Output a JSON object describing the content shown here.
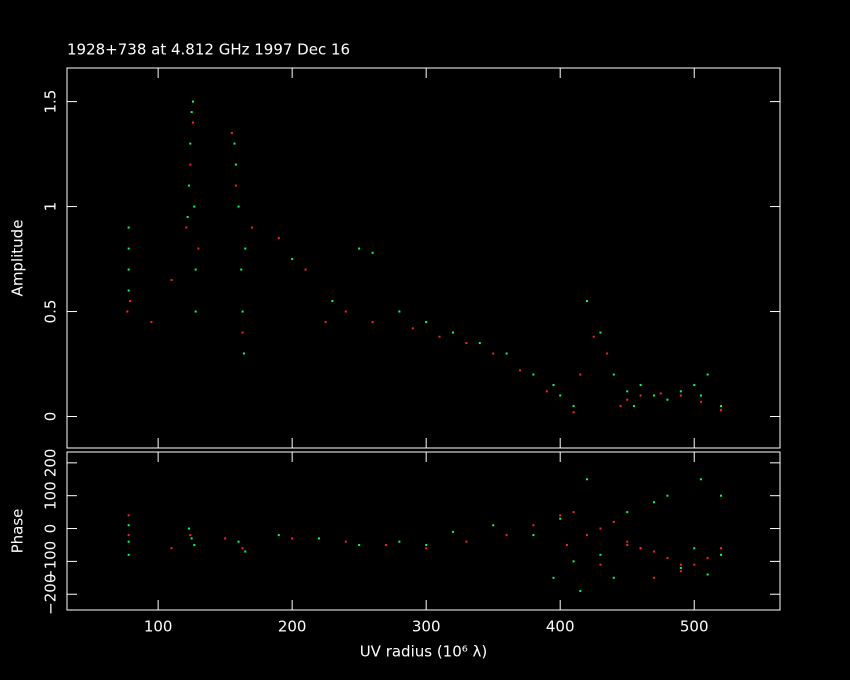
{
  "chart_data": [
    {
      "type": "scatter",
      "title": "1928+738 at 4.812 GHz 1997 Dec 16",
      "y_label": "Amplitude",
      "xlim": [
        32,
        564
      ],
      "xticks": [
        100,
        200,
        300,
        400,
        500
      ],
      "ylim": [
        -0.15,
        1.66
      ],
      "yticks": [
        0,
        0.5,
        1,
        1.5
      ],
      "series": [
        {
          "color": "#00ff66",
          "x": [
            78,
            78,
            78,
            78,
            122,
            123,
            124,
            125,
            126,
            127,
            128,
            128,
            157,
            158,
            160,
            162,
            163,
            164,
            165,
            200,
            230,
            250,
            260,
            280,
            300,
            320,
            340,
            360,
            380,
            400,
            420,
            430,
            440,
            450,
            460,
            470,
            480,
            490,
            500,
            510,
            520,
            395,
            410,
            455,
            505
          ],
          "values": [
            0.9,
            0.8,
            0.7,
            0.6,
            0.95,
            1.1,
            1.3,
            1.45,
            1.5,
            1.0,
            0.7,
            0.5,
            1.3,
            1.2,
            1.0,
            0.7,
            0.5,
            0.3,
            0.8,
            0.75,
            0.55,
            0.8,
            0.78,
            0.5,
            0.45,
            0.4,
            0.35,
            0.3,
            0.2,
            0.1,
            0.55,
            0.4,
            0.2,
            0.12,
            0.15,
            0.1,
            0.08,
            0.12,
            0.15,
            0.2,
            0.05,
            0.15,
            0.05,
            0.05,
            0.1
          ]
        },
        {
          "color": "#ff2020",
          "x": [
            77,
            79,
            95,
            110,
            121,
            124,
            126,
            130,
            155,
            158,
            163,
            170,
            190,
            210,
            225,
            240,
            260,
            290,
            310,
            330,
            350,
            370,
            390,
            410,
            425,
            435,
            445,
            460,
            475,
            490,
            505,
            520,
            415,
            450
          ],
          "values": [
            0.5,
            0.55,
            0.45,
            0.65,
            0.9,
            1.2,
            1.4,
            0.8,
            1.35,
            1.1,
            0.4,
            0.9,
            0.85,
            0.7,
            0.45,
            0.5,
            0.45,
            0.42,
            0.38,
            0.35,
            0.3,
            0.22,
            0.12,
            0.02,
            0.38,
            0.3,
            0.05,
            0.1,
            0.11,
            0.1,
            0.07,
            0.03,
            0.2,
            0.08
          ]
        }
      ]
    },
    {
      "type": "scatter",
      "y_label": "Phase",
      "x_label": "UV radius  (10⁶ λ)",
      "xlim": [
        32,
        564
      ],
      "xticks": [
        100,
        200,
        300,
        400,
        500
      ],
      "ylim": [
        -248,
        233
      ],
      "yticks": [
        {
          "value": -200,
          "label": "−200"
        },
        {
          "value": -100,
          "label": "−100"
        },
        0,
        100,
        200
      ],
      "series": [
        {
          "color": "#00ff66",
          "x": [
            78,
            78,
            78,
            123,
            125,
            127,
            160,
            165,
            190,
            220,
            250,
            280,
            300,
            320,
            350,
            380,
            400,
            410,
            420,
            430,
            440,
            450,
            460,
            470,
            480,
            490,
            500,
            510,
            520,
            395,
            415,
            505,
            520
          ],
          "values": [
            -80,
            -40,
            10,
            0,
            -30,
            -50,
            -40,
            -70,
            -20,
            -30,
            -50,
            -40,
            -50,
            -10,
            10,
            -20,
            30,
            -100,
            150,
            -80,
            -150,
            50,
            -60,
            80,
            100,
            -120,
            -60,
            -140,
            -80,
            -150,
            -190,
            150,
            100
          ]
        },
        {
          "color": "#ff2020",
          "x": [
            78,
            78,
            110,
            124,
            150,
            163,
            200,
            240,
            270,
            300,
            330,
            360,
            380,
            400,
            410,
            420,
            430,
            440,
            450,
            460,
            470,
            480,
            490,
            500,
            510,
            520,
            405,
            430,
            450,
            470,
            490
          ],
          "values": [
            40,
            -20,
            -60,
            -20,
            -30,
            -60,
            -30,
            -40,
            -50,
            -60,
            -40,
            -20,
            10,
            40,
            50,
            -20,
            0,
            20,
            -50,
            -60,
            -70,
            -90,
            -110,
            -110,
            -90,
            -60,
            -50,
            -110,
            -40,
            -150,
            -130
          ]
        }
      ]
    }
  ]
}
